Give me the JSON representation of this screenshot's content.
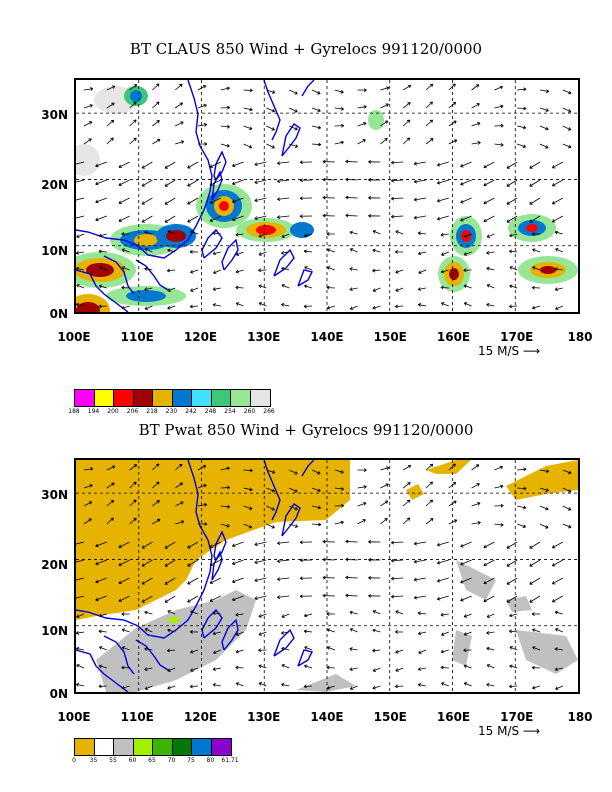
{
  "panels": [
    {
      "title": "BT CLAUS 850 Wind + Gyrelocs 991120/0000",
      "lat_labels": [
        "30N",
        "20N",
        "10N",
        "0N"
      ],
      "lon_labels": [
        "100E",
        "110E",
        "120E",
        "130E",
        "140E",
        "150E",
        "160E",
        "170E",
        "180"
      ],
      "reference_vector": "15 M/S",
      "legend": {
        "colors": [
          "#ff00ff",
          "#ffff00",
          "#ff0000",
          "#a00000",
          "#e6b400",
          "#0078d0",
          "#40e0ff",
          "#3cc878",
          "#96e696",
          "#e6e6e6"
        ],
        "labels": [
          "188",
          "194",
          "200",
          "206",
          "218",
          "230",
          "242",
          "248",
          "254",
          "260",
          "266"
        ]
      }
    },
    {
      "title": "BT Pwat 850 Wind + Gyrelocs 991120/0000",
      "lat_labels": [
        "30N",
        "20N",
        "10N",
        "0N"
      ],
      "lon_labels": [
        "100E",
        "110E",
        "120E",
        "130E",
        "140E",
        "150E",
        "160E",
        "170E",
        "180"
      ],
      "reference_vector": "15 M/S",
      "legend": {
        "colors": [
          "#e6b400",
          "#ffffff",
          "#c0c0c0",
          "#a0f000",
          "#3cb400",
          "#00780a",
          "#0078d0",
          "#8c00d0"
        ],
        "labels": [
          "0",
          "35",
          "55",
          "60",
          "65",
          "70",
          "75",
          "80",
          "61.71"
        ]
      }
    }
  ]
}
